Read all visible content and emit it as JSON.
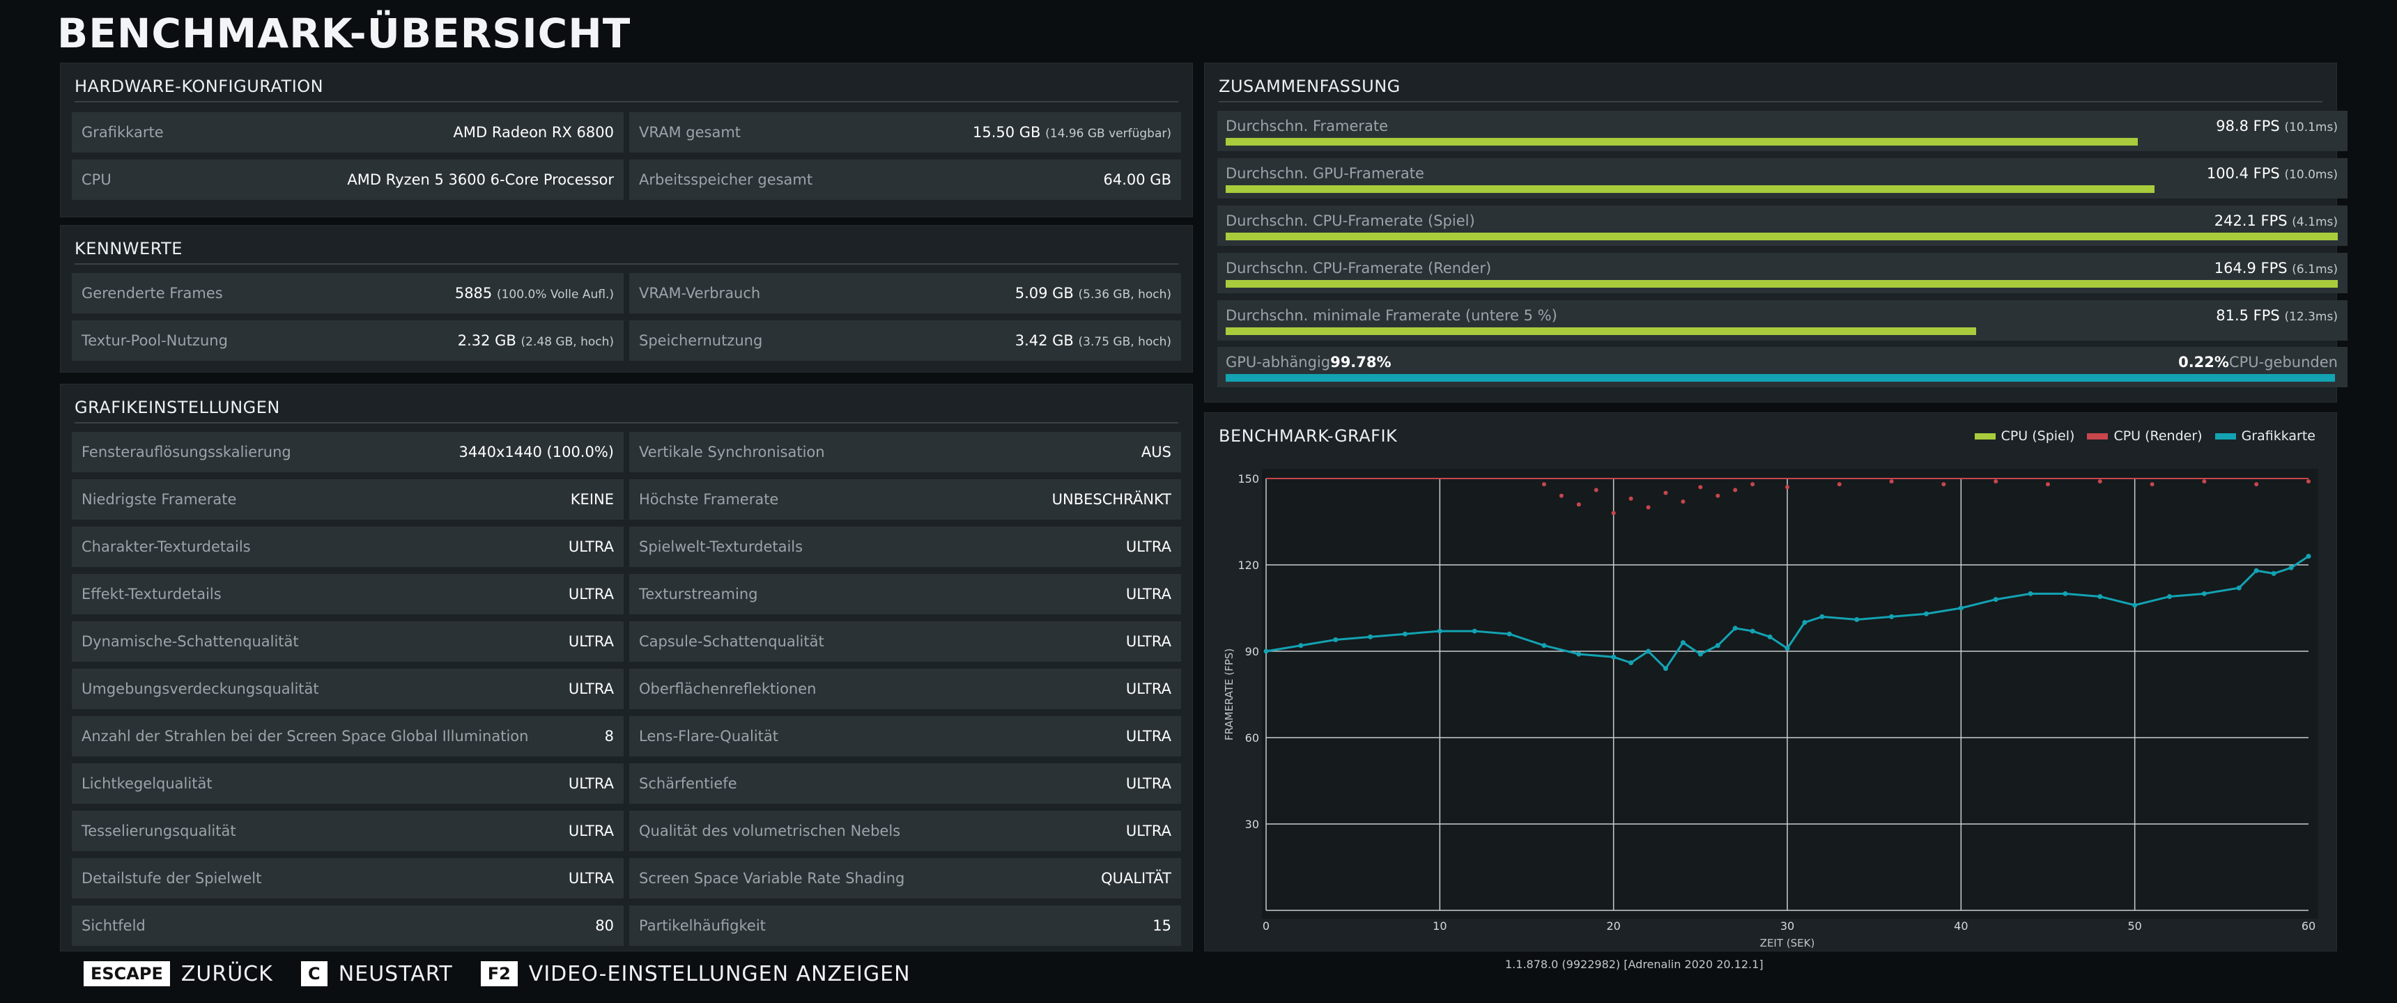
{
  "title": "BENCHMARK-ÜBERSICHT",
  "hardware": {
    "title": "HARDWARE-KONFIGURATION",
    "rows": [
      {
        "label": "Grafikkarte",
        "value": "AMD Radeon RX 6800",
        "extra": ""
      },
      {
        "label": "VRAM gesamt",
        "value": "15.50 GB",
        "extra": "(14.96 GB verfügbar)"
      },
      {
        "label": "CPU",
        "value": "AMD Ryzen 5 3600 6-Core Processor",
        "extra": ""
      },
      {
        "label": "Arbeitsspeicher gesamt",
        "value": "64.00 GB",
        "extra": ""
      }
    ]
  },
  "kennwerte": {
    "title": "KENNWERTE",
    "rows": [
      {
        "label": "Gerenderte Frames",
        "value": "5885",
        "extra": "(100.0% Volle Aufl.)"
      },
      {
        "label": "VRAM-Verbrauch",
        "value": "5.09 GB",
        "extra": "(5.36 GB, hoch)"
      },
      {
        "label": "Textur-Pool-Nutzung",
        "value": "2.32 GB",
        "extra": "(2.48 GB, hoch)"
      },
      {
        "label": "Speichernutzung",
        "value": "3.42 GB",
        "extra": "(3.75 GB, hoch)"
      }
    ]
  },
  "grafik": {
    "title": "GRAFIKEINSTELLUNGEN",
    "left": [
      {
        "label": "Fensterauflösungsskalierung",
        "value": "3440x1440 (100.0%)"
      },
      {
        "label": "Niedrigste Framerate",
        "value": "KEINE"
      },
      {
        "label": "Charakter-Texturdetails",
        "value": "ULTRA"
      },
      {
        "label": "Effekt-Texturdetails",
        "value": "ULTRA"
      },
      {
        "label": "Dynamische-Schattenqualität",
        "value": "ULTRA"
      },
      {
        "label": "Umgebungsverdeckungsqualität",
        "value": "ULTRA"
      },
      {
        "label": "Anzahl der Strahlen bei der Screen Space Global Illumination",
        "value": "8"
      },
      {
        "label": "Lichtkegelqualität",
        "value": "ULTRA"
      },
      {
        "label": "Tesselierungsqualität",
        "value": "ULTRA"
      },
      {
        "label": "Detailstufe der Spielwelt",
        "value": "ULTRA"
      },
      {
        "label": "Sichtfeld",
        "value": "80"
      }
    ],
    "right": [
      {
        "label": "Vertikale Synchronisation",
        "value": "AUS"
      },
      {
        "label": "Höchste Framerate",
        "value": "UNBESCHRÄNKT"
      },
      {
        "label": "Spielwelt-Texturdetails",
        "value": "ULTRA"
      },
      {
        "label": "Texturstreaming",
        "value": "ULTRA"
      },
      {
        "label": "Capsule-Schattenqualität",
        "value": "ULTRA"
      },
      {
        "label": "Oberflächenreflektionen",
        "value": "ULTRA"
      },
      {
        "label": "Lens-Flare-Qualität",
        "value": "ULTRA"
      },
      {
        "label": "Schärfentiefe",
        "value": "ULTRA"
      },
      {
        "label": "Qualität des volumetrischen Nebels",
        "value": "ULTRA"
      },
      {
        "label": "Screen Space Variable Rate Shading",
        "value": "QUALITÄT"
      },
      {
        "label": "Partikelhäufigkeit",
        "value": "15"
      }
    ]
  },
  "summary": {
    "title": "ZUSAMMENFASSUNG",
    "rows": [
      {
        "label": "Durchschn. Framerate",
        "value": "98.8 FPS",
        "extra": "(10.1ms)",
        "fill": 0.82
      },
      {
        "label": "Durchschn. GPU-Framerate",
        "value": "100.4 FPS",
        "extra": "(10.0ms)",
        "fill": 0.835
      },
      {
        "label": "Durchschn. CPU-Framerate (Spiel)",
        "value": "242.1 FPS",
        "extra": "(4.1ms)",
        "fill": 1.0
      },
      {
        "label": "Durchschn. CPU-Framerate (Render)",
        "value": "164.9 FPS",
        "extra": "(6.1ms)",
        "fill": 1.0
      },
      {
        "label": "Durchschn. minimale Framerate (untere 5 %)",
        "value": "81.5 FPS",
        "extra": "(12.3ms)",
        "fill": 0.675
      }
    ],
    "gpu_bound": {
      "left_label": "GPU-abhängig",
      "left_value": "99.78%",
      "right_value": "0.22%",
      "right_label": "CPU-gebunden",
      "fill": 0.9978
    }
  },
  "chart_panel": {
    "title": "BENCHMARK-GRAFIK",
    "legend": [
      {
        "name": "CPU (Spiel)",
        "color": "#a8cc3c"
      },
      {
        "name": "CPU (Render)",
        "color": "#c8464c"
      },
      {
        "name": "Grafikkarte",
        "color": "#13a3b3"
      }
    ]
  },
  "chart_data": {
    "type": "scatter",
    "xlabel": "ZEIT (SEK)",
    "ylabel": "FRAMERATE (FPS)",
    "xlim": [
      0,
      60
    ],
    "ylim": [
      0,
      150
    ],
    "xticks": [
      0,
      10,
      20,
      30,
      40,
      50,
      60
    ],
    "yticks": [
      30,
      60,
      90,
      120,
      150
    ],
    "grid": true,
    "series": [
      {
        "name": "CPU (Spiel)",
        "color": "#a8cc3c",
        "points": [
          [
            0,
            150
          ],
          [
            60,
            150
          ]
        ]
      },
      {
        "name": "CPU (Render)",
        "color": "#c8464c",
        "points": [
          [
            16,
            148
          ],
          [
            17,
            144
          ],
          [
            18,
            141
          ],
          [
            19,
            146
          ],
          [
            20,
            138
          ],
          [
            21,
            143
          ],
          [
            22,
            140
          ],
          [
            23,
            145
          ],
          [
            24,
            142
          ],
          [
            25,
            147
          ],
          [
            26,
            144
          ],
          [
            27,
            146
          ],
          [
            28,
            148
          ],
          [
            30,
            147
          ],
          [
            33,
            148
          ],
          [
            36,
            149
          ],
          [
            39,
            148
          ],
          [
            42,
            149
          ],
          [
            45,
            148
          ],
          [
            48,
            149
          ],
          [
            51,
            148
          ],
          [
            54,
            149
          ],
          [
            57,
            148
          ],
          [
            60,
            149
          ]
        ]
      },
      {
        "name": "Grafikkarte",
        "color": "#13a3b3",
        "points": [
          [
            0,
            90
          ],
          [
            2,
            92
          ],
          [
            4,
            94
          ],
          [
            6,
            95
          ],
          [
            8,
            96
          ],
          [
            10,
            97
          ],
          [
            12,
            97
          ],
          [
            14,
            96
          ],
          [
            16,
            92
          ],
          [
            18,
            89
          ],
          [
            20,
            88
          ],
          [
            21,
            86
          ],
          [
            22,
            90
          ],
          [
            23,
            84
          ],
          [
            24,
            93
          ],
          [
            25,
            89
          ],
          [
            26,
            92
          ],
          [
            27,
            98
          ],
          [
            28,
            97
          ],
          [
            29,
            95
          ],
          [
            30,
            91
          ],
          [
            31,
            100
          ],
          [
            32,
            102
          ],
          [
            34,
            101
          ],
          [
            36,
            102
          ],
          [
            38,
            103
          ],
          [
            40,
            105
          ],
          [
            42,
            108
          ],
          [
            44,
            110
          ],
          [
            46,
            110
          ],
          [
            48,
            109
          ],
          [
            50,
            106
          ],
          [
            52,
            109
          ],
          [
            54,
            110
          ],
          [
            56,
            112
          ],
          [
            57,
            118
          ],
          [
            58,
            117
          ],
          [
            59,
            119
          ],
          [
            60,
            123
          ]
        ]
      }
    ]
  },
  "footer": {
    "keys": [
      {
        "key": "ESCAPE",
        "label": "ZURÜCK"
      },
      {
        "key": "C",
        "label": "NEUSTART"
      },
      {
        "key": "F2",
        "label": "VIDEO-EINSTELLUNGEN ANZEIGEN"
      }
    ],
    "version": "1.1.878.0 (9922982) [Adrenalin 2020 20.12.1]"
  }
}
